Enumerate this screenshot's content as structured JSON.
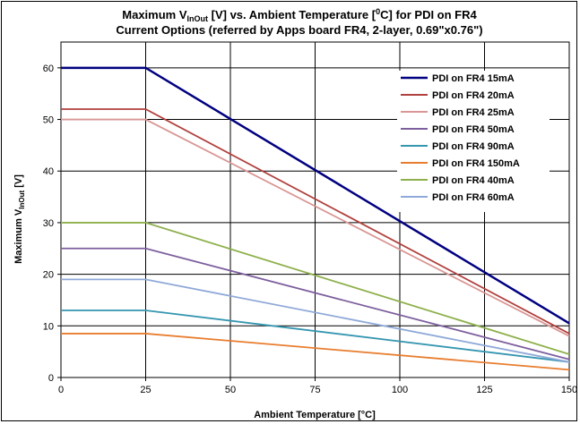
{
  "chart_data": {
    "type": "line",
    "title_line1_main": "Maximum V",
    "title_line1_sub": "InOut",
    "title_line1_rest": " [V] vs. Ambient Temperature [",
    "title_line1_sup": "0",
    "title_line1_end": "C] for PDI on FR4",
    "title_line2": "Current Options (referred by Apps board FR4, 2-layer, 0.69\"x0.76\")",
    "xlabel": "Ambient Temperature [°C]",
    "ylabel_main": "Maximum V",
    "ylabel_sub": "InOut",
    "ylabel_rest": " [V]",
    "xlim": [
      0,
      150
    ],
    "ylim": [
      0,
      65
    ],
    "xticks": [
      0,
      25,
      50,
      75,
      100,
      125,
      150
    ],
    "yticks": [
      0,
      10,
      20,
      30,
      40,
      50,
      60
    ],
    "grid": true,
    "legend_position": "top-right",
    "x": [
      0,
      25,
      150
    ],
    "series": [
      {
        "name": "PDI on FR4 15mA",
        "color": "#000080",
        "values": [
          60,
          60,
          10.5
        ]
      },
      {
        "name": "PDI on FR4 20mA",
        "color": "#B0413E",
        "values": [
          52,
          52,
          8.5
        ]
      },
      {
        "name": "PDI on FR4 25mA",
        "color": "#D99694",
        "values": [
          50,
          50,
          8
        ]
      },
      {
        "name": "PDI on FR4 50mA",
        "color": "#7D5F9E",
        "values": [
          25,
          25,
          3.5
        ]
      },
      {
        "name": "PDI on FR4 90mA",
        "color": "#3596B0",
        "values": [
          13,
          13,
          3
        ]
      },
      {
        "name": "PDI on FR4 150mA",
        "color": "#E87D2E",
        "values": [
          8.5,
          8.5,
          1.5
        ]
      },
      {
        "name": "PDI on FR4 40mA",
        "color": "#8EB04C",
        "values": [
          30,
          30,
          4.5
        ]
      },
      {
        "name": "PDI on FR4 60mA",
        "color": "#8FA9D8",
        "values": [
          19,
          19,
          3
        ]
      }
    ]
  }
}
